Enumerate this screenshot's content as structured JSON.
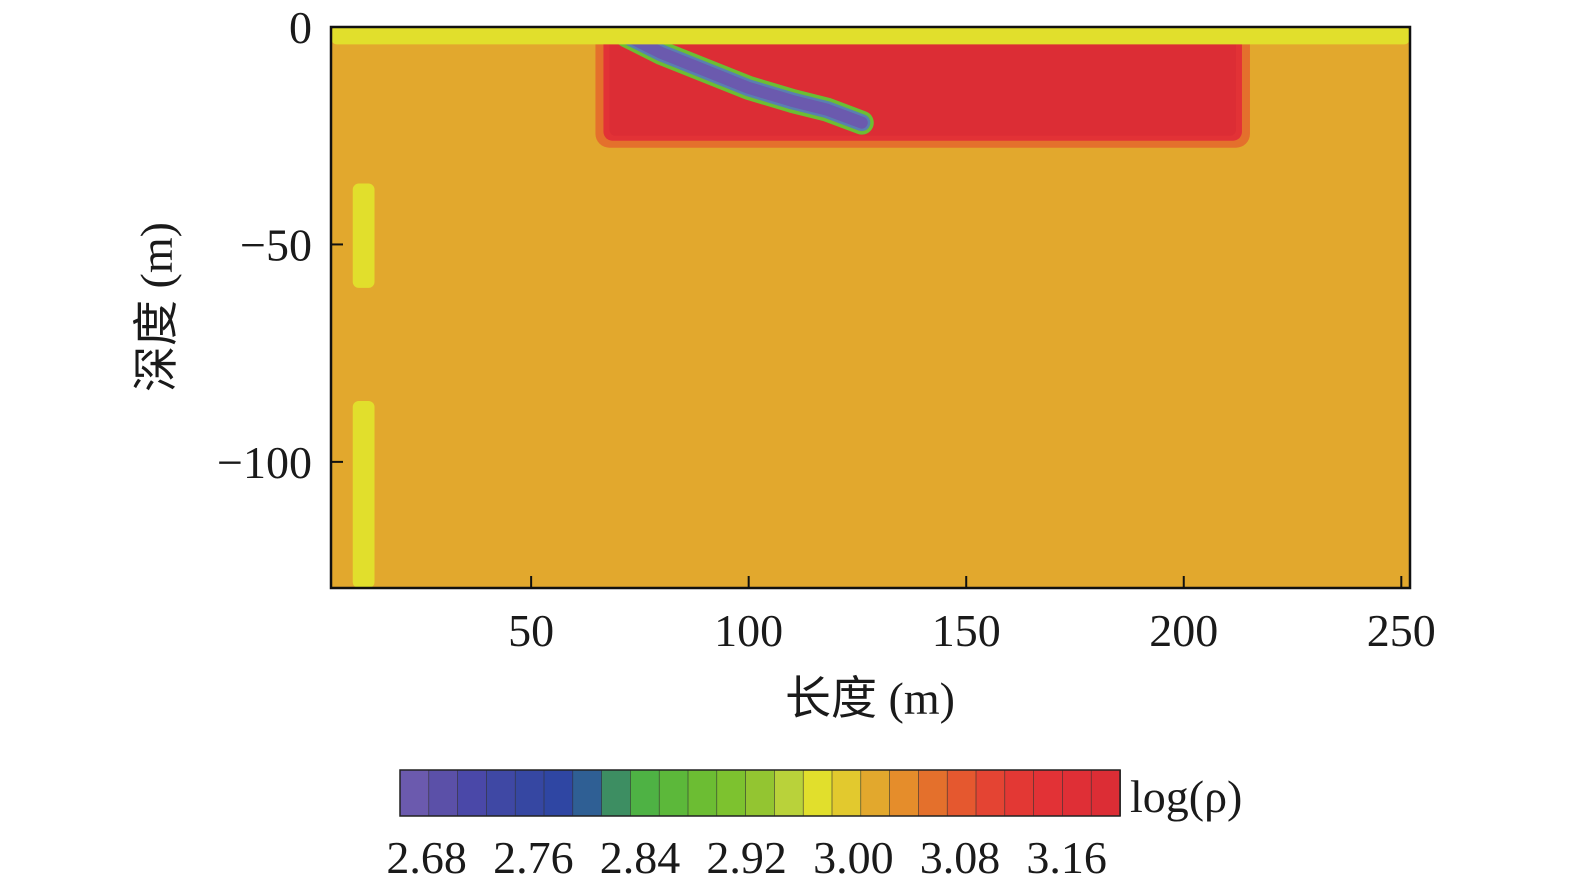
{
  "chart_data": {
    "type": "heatmap",
    "title": "",
    "xlabel": "长度 (m)",
    "ylabel": "深度 (m)",
    "xlim": [
      4,
      252
    ],
    "ylim": [
      -129,
      0
    ],
    "xticks": [
      50,
      100,
      150,
      200,
      250
    ],
    "yticks": [
      0,
      -50,
      -100
    ],
    "colorbar": {
      "label": "log(ρ)",
      "min": 2.66,
      "max": 3.2,
      "tick_labels": [
        "2.68",
        "2.76",
        "2.84",
        "2.92",
        "3.00",
        "3.08",
        "3.16"
      ],
      "tick_values": [
        2.68,
        2.76,
        2.84,
        2.92,
        3.0,
        3.08,
        3.16
      ],
      "colors": [
        "#6b5aae",
        "#5b50a8",
        "#4a48a8",
        "#3f48a4",
        "#3647a2",
        "#2f46a3",
        "#2f5f94",
        "#3d8e62",
        "#4eb244",
        "#5cb83a",
        "#6cbd33",
        "#7dc22f",
        "#93c531",
        "#b9d23a",
        "#e1df2c",
        "#e2c92e",
        "#e2a82d",
        "#e58d2b",
        "#e4702c",
        "#e5582f",
        "#e44433",
        "#e33834",
        "#e23236",
        "#df2f36",
        "#dc2d35"
      ]
    },
    "background_log_rho": 3.02,
    "anomalies": [
      {
        "name": "high-resistivity body",
        "log_rho": 3.2,
        "x_range": [
          68,
          212
        ],
        "depth_range": [
          -2,
          -25
        ]
      },
      {
        "name": "low-resistivity dipping band",
        "log_rho": 2.68,
        "path_x": [
          72,
          80,
          90,
          100,
          110,
          118,
          126
        ],
        "path_depth": [
          -2,
          -6,
          -10,
          -14,
          -17,
          -19,
          -22
        ]
      },
      {
        "name": "near-surface layer",
        "log_rho": 2.98,
        "x_range": [
          4,
          252
        ],
        "depth_range": [
          0,
          -4
        ]
      },
      {
        "name": "vertical strip",
        "log_rho": 2.98,
        "x_range": [
          9,
          14
        ],
        "depth_range": [
          -36,
          -60
        ]
      },
      {
        "name": "vertical strip",
        "log_rho": 2.98,
        "x_range": [
          9,
          14
        ],
        "depth_range": [
          -86,
          -129
        ]
      }
    ]
  }
}
